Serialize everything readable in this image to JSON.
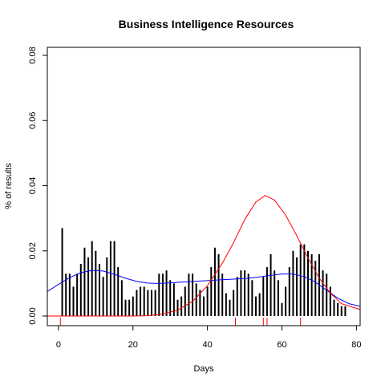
{
  "chart_data": {
    "type": "bar",
    "title": "Business Intelligence Resources",
    "xlabel": "Days",
    "ylabel": "% of results",
    "xlim": [
      -3,
      81
    ],
    "ylim": [
      0,
      0.08
    ],
    "x_ticks": [
      0,
      20,
      40,
      60,
      80
    ],
    "y_ticks": [
      0.0,
      0.02,
      0.04,
      0.06,
      0.08
    ],
    "x_tick_labels": [
      "0",
      "20",
      "40",
      "60",
      "80"
    ],
    "y_tick_labels": [
      "0.00",
      "0.02",
      "0.04",
      "0.06",
      "0.08"
    ],
    "grid": false,
    "series": [
      {
        "kind": "bars",
        "color": "#000000",
        "points": [
          [
            1,
            0.027
          ],
          [
            2,
            0.013
          ],
          [
            3,
            0.013
          ],
          [
            4,
            0.009
          ],
          [
            5,
            0.013
          ],
          [
            6,
            0.016
          ],
          [
            7,
            0.021
          ],
          [
            8,
            0.018
          ],
          [
            9,
            0.023
          ],
          [
            10,
            0.02
          ],
          [
            11,
            0.016
          ],
          [
            12,
            0.012
          ],
          [
            13,
            0.018
          ],
          [
            14,
            0.023
          ],
          [
            15,
            0.023
          ],
          [
            16,
            0.015
          ],
          [
            17,
            0.011
          ],
          [
            18,
            0.005
          ],
          [
            19,
            0.005
          ],
          [
            20,
            0.006
          ],
          [
            21,
            0.008
          ],
          [
            22,
            0.009
          ],
          [
            23,
            0.009
          ],
          [
            24,
            0.008
          ],
          [
            25,
            0.008
          ],
          [
            26,
            0.008
          ],
          [
            27,
            0.013
          ],
          [
            28,
            0.013
          ],
          [
            29,
            0.014
          ],
          [
            30,
            0.011
          ],
          [
            31,
            0.01
          ],
          [
            32,
            0.005
          ],
          [
            33,
            0.006
          ],
          [
            34,
            0.009
          ],
          [
            35,
            0.013
          ],
          [
            36,
            0.013
          ],
          [
            37,
            0.01
          ],
          [
            38,
            0.008
          ],
          [
            39,
            0.006
          ],
          [
            40,
            0.009
          ],
          [
            41,
            0.015
          ],
          [
            42,
            0.021
          ],
          [
            43,
            0.019
          ],
          [
            44,
            0.013
          ],
          [
            45,
            0.007
          ],
          [
            46,
            0.005
          ],
          [
            47,
            0.008
          ],
          [
            48,
            0.012
          ],
          [
            49,
            0.014
          ],
          [
            50,
            0.014
          ],
          [
            51,
            0.013
          ],
          [
            52,
            0.011
          ],
          [
            53,
            0.006
          ],
          [
            54,
            0.007
          ],
          [
            55,
            0.012
          ],
          [
            56,
            0.015
          ],
          [
            57,
            0.019
          ],
          [
            58,
            0.014
          ],
          [
            59,
            0.011
          ],
          [
            60,
            0.004
          ],
          [
            61,
            0.009
          ],
          [
            62,
            0.015
          ],
          [
            63,
            0.02
          ],
          [
            64,
            0.018
          ],
          [
            65,
            0.022
          ],
          [
            66,
            0.022
          ],
          [
            67,
            0.02
          ],
          [
            68,
            0.019
          ],
          [
            69,
            0.017
          ],
          [
            70,
            0.019
          ],
          [
            71,
            0.014
          ],
          [
            72,
            0.013
          ],
          [
            73,
            0.009
          ],
          [
            74,
            0.005
          ],
          [
            75,
            0.004
          ],
          [
            76,
            0.003
          ],
          [
            77,
            0.003
          ]
        ]
      },
      {
        "kind": "line",
        "color": "#0000ff",
        "points": [
          [
            -3,
            0.0075
          ],
          [
            0,
            0.0097
          ],
          [
            3,
            0.0118
          ],
          [
            6,
            0.0133
          ],
          [
            9,
            0.014
          ],
          [
            12,
            0.0138
          ],
          [
            15,
            0.0128
          ],
          [
            18,
            0.0116
          ],
          [
            21,
            0.0106
          ],
          [
            24,
            0.0101
          ],
          [
            27,
            0.01
          ],
          [
            30,
            0.0102
          ],
          [
            33,
            0.0104
          ],
          [
            36,
            0.0106
          ],
          [
            39,
            0.0108
          ],
          [
            42,
            0.011
          ],
          [
            45,
            0.0112
          ],
          [
            48,
            0.0114
          ],
          [
            51,
            0.0116
          ],
          [
            54,
            0.012
          ],
          [
            57,
            0.0125
          ],
          [
            60,
            0.0129
          ],
          [
            63,
            0.0129
          ],
          [
            66,
            0.0121
          ],
          [
            69,
            0.0104
          ],
          [
            72,
            0.0079
          ],
          [
            75,
            0.0055
          ],
          [
            78,
            0.0038
          ],
          [
            81,
            0.003
          ]
        ]
      },
      {
        "kind": "line",
        "color": "#ff0000",
        "points": [
          [
            -3,
            0.0
          ],
          [
            20,
            0.0
          ],
          [
            24,
            0.0001
          ],
          [
            28,
            0.0006
          ],
          [
            32,
            0.0018
          ],
          [
            36,
            0.0045
          ],
          [
            40,
            0.0093
          ],
          [
            44,
            0.0162
          ],
          [
            47,
            0.0225
          ],
          [
            50,
            0.0296
          ],
          [
            53,
            0.035
          ],
          [
            55.5,
            0.037
          ],
          [
            58,
            0.0356
          ],
          [
            61,
            0.031
          ],
          [
            64,
            0.0246
          ],
          [
            67,
            0.0178
          ],
          [
            70,
            0.0117
          ],
          [
            73,
            0.007
          ],
          [
            76,
            0.0038
          ],
          [
            81,
            0.002
          ]
        ]
      }
    ],
    "rug": {
      "color": "#ff0000",
      "x": [
        0.5,
        47.5,
        55,
        56,
        65
      ]
    }
  }
}
